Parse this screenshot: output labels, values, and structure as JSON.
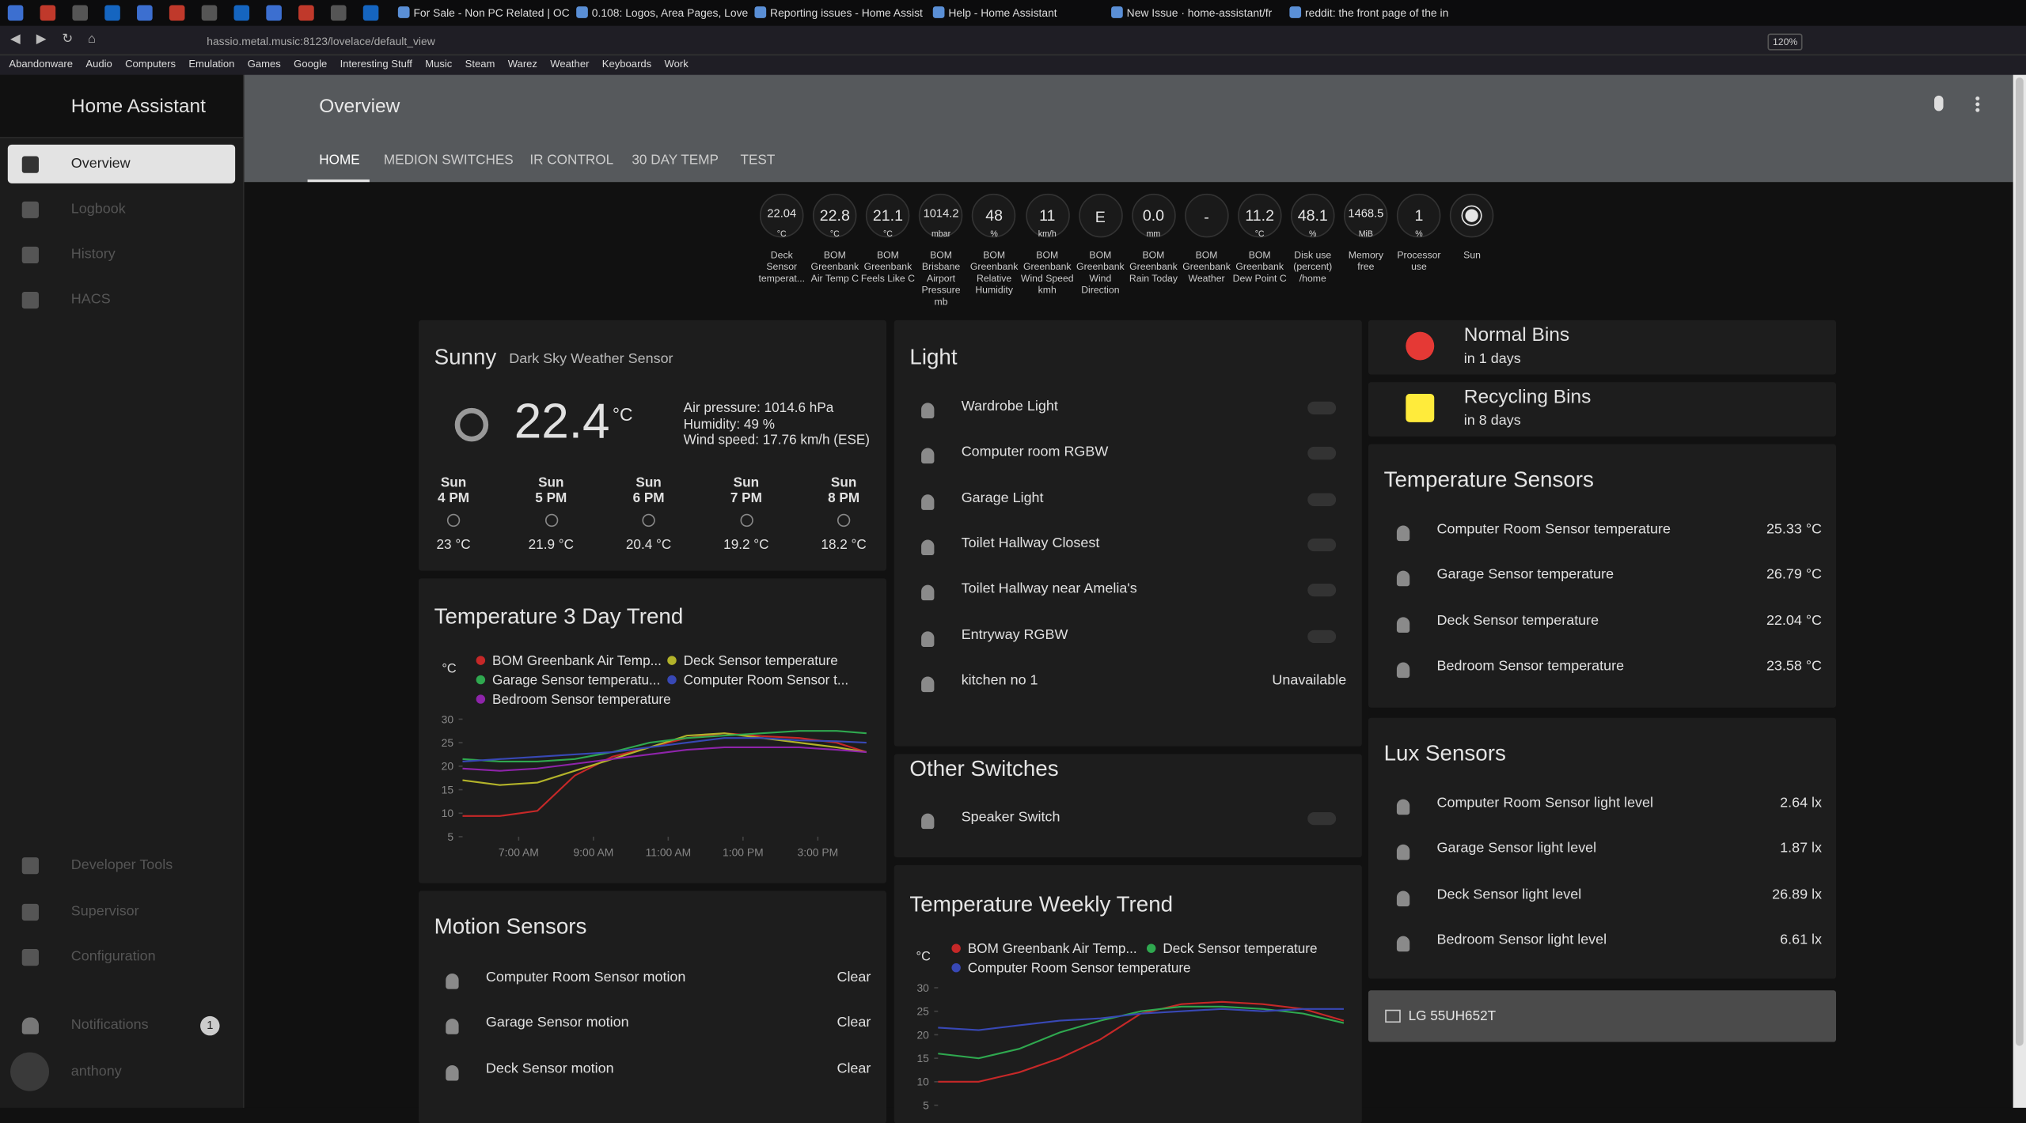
{
  "browser": {
    "tabs": [
      "For Sale - Non PC Related | OC",
      "0.108: Logos, Area Pages, Love",
      "Reporting issues - Home Assist",
      "Help - Home Assistant",
      "New Issue · home-assistant/fr",
      "reddit: the front page of the in"
    ],
    "url": "hassio.metal.music:8123/lovelace/default_view",
    "zoom": "120%",
    "bookmarks": [
      "Abandonware",
      "Audio",
      "Computers",
      "Emulation",
      "Games",
      "Google",
      "Interesting Stuff",
      "Music",
      "Steam",
      "Warez",
      "Weather",
      "Keyboards",
      "Work"
    ]
  },
  "sidebar": {
    "title": "Home Assistant",
    "items": [
      "Overview",
      "Logbook",
      "History",
      "HACS"
    ],
    "bottom_items": [
      "Developer Tools",
      "Supervisor",
      "Configuration"
    ],
    "notifications": "Notifications",
    "notification_count": "1",
    "user": "anthony"
  },
  "header": {
    "title": "Overview",
    "tabs": [
      "HOME",
      "MEDION SWITCHES",
      "IR CONTROL",
      "30 DAY TEMP",
      "TEST"
    ]
  },
  "badges": [
    {
      "value": "22.04",
      "unit": "°C",
      "label": "Deck Sensor temperat..."
    },
    {
      "value": "22.8",
      "unit": "°C",
      "label": "BOM Greenbank Air Temp C"
    },
    {
      "value": "21.1",
      "unit": "°C",
      "label": "BOM Greenbank Feels Like C"
    },
    {
      "value": "1014.2",
      "unit": "mbar",
      "label": "BOM Brisbane Airport Pressure mb"
    },
    {
      "value": "48",
      "unit": "%",
      "label": "BOM Greenbank Relative Humidity"
    },
    {
      "value": "11",
      "unit": "km/h",
      "label": "BOM Greenbank Wind Speed kmh"
    },
    {
      "value": "E",
      "label": "BOM Greenbank Wind Direction"
    },
    {
      "value": "0.0",
      "unit": "mm",
      "label": "BOM Greenbank Rain Today"
    },
    {
      "value": "-",
      "label": "BOM Greenbank Weather"
    },
    {
      "value": "11.2",
      "unit": "°C",
      "label": "BOM Greenbank Dew Point C"
    },
    {
      "value": "48.1",
      "unit": "%",
      "label": "Disk use (percent) /home"
    },
    {
      "value": "1468.5",
      "unit": "MiB",
      "label": "Memory free"
    },
    {
      "value": "1",
      "unit": "%",
      "label": "Processor use"
    },
    {
      "label": "Sun"
    }
  ],
  "weather": {
    "condition": "Sunny",
    "name": "Dark Sky Weather Sensor",
    "temperature": "22.4",
    "unit": "°C",
    "attributes": [
      "Air pressure: 1014.6 hPa",
      "Humidity: 49 %",
      "Wind speed: 17.76 km/h (ESE)"
    ],
    "forecast": [
      {
        "day": "Sun",
        "time": "4 PM",
        "temp": "23 °C"
      },
      {
        "day": "Sun",
        "time": "5 PM",
        "temp": "21.9 °C"
      },
      {
        "day": "Sun",
        "time": "6 PM",
        "temp": "20.4 °C"
      },
      {
        "day": "Sun",
        "time": "7 PM",
        "temp": "19.2 °C"
      },
      {
        "day": "Sun",
        "time": "8 PM",
        "temp": "18.2 °C"
      }
    ]
  },
  "light": {
    "title": "Light",
    "entities": [
      {
        "name": "Wardrobe Light"
      },
      {
        "name": "Computer room RGBW"
      },
      {
        "name": "Garage Light"
      },
      {
        "name": "Toilet Hallway Closest"
      },
      {
        "name": "Toilet Hallway near Amelia's"
      },
      {
        "name": "Entryway RGBW"
      },
      {
        "name": "kitchen no 1",
        "state": "Unavailable"
      }
    ]
  },
  "other_switches": {
    "title": "Other Switches",
    "entities": [
      {
        "name": "Speaker Switch"
      }
    ]
  },
  "motion": {
    "title": "Motion Sensors",
    "entities": [
      {
        "name": "Computer Room Sensor motion",
        "state": "Clear"
      },
      {
        "name": "Garage Sensor motion",
        "state": "Clear"
      },
      {
        "name": "Deck Sensor motion",
        "state": "Clear"
      }
    ]
  },
  "bins": [
    {
      "name": "Normal Bins",
      "due": "in 1 days"
    },
    {
      "name": "Recycling Bins",
      "due": "in 8 days"
    }
  ],
  "temperature_sensors": {
    "title": "Temperature Sensors",
    "entities": [
      {
        "name": "Computer Room Sensor temperature",
        "state": "25.33 °C"
      },
      {
        "name": "Garage Sensor temperature",
        "state": "26.79 °C"
      },
      {
        "name": "Deck Sensor temperature",
        "state": "22.04 °C"
      },
      {
        "name": "Bedroom Sensor temperature",
        "state": "23.58 °C"
      }
    ]
  },
  "lux_sensors": {
    "title": "Lux Sensors",
    "entities": [
      {
        "name": "Computer Room Sensor light level",
        "state": "2.64 lx"
      },
      {
        "name": "Garage Sensor light level",
        "state": "1.87 lx"
      },
      {
        "name": "Deck Sensor light level",
        "state": "26.89 lx"
      },
      {
        "name": "Bedroom Sensor light level",
        "state": "6.61 lx"
      }
    ]
  },
  "media": {
    "name": "LG 55UH652T"
  },
  "chart_data": [
    {
      "type": "line",
      "title": "Temperature 3 Day Trend",
      "y_label": "°C",
      "x": [
        5.5,
        6.5,
        7.5,
        8.5,
        9.5,
        10.5,
        11.5,
        12.5,
        13.5,
        14.5,
        15.5,
        16.3
      ],
      "xlim": [
        5.5,
        16.35
      ],
      "xticks": [
        {
          "value": 7,
          "label": "7:00 AM"
        },
        {
          "value": 9,
          "label": "9:00 AM"
        },
        {
          "value": 11,
          "label": "11:00 AM"
        },
        {
          "value": 13,
          "label": "1:00 PM"
        },
        {
          "value": 15,
          "label": "3:00 PM"
        }
      ],
      "ylim": [
        5,
        30
      ],
      "yticks": [
        5,
        10,
        15,
        20,
        25,
        30
      ],
      "series": [
        {
          "name": "BOM Greenbank Air Temp...",
          "color": "#c62828",
          "values": [
            9.4,
            9.4,
            10.5,
            18,
            22,
            24,
            26,
            27,
            26.4,
            26,
            25,
            23
          ]
        },
        {
          "name": "Deck Sensor temperature",
          "color": "#b3b32a",
          "values": [
            17,
            16,
            16.5,
            19,
            21.5,
            24,
            26.5,
            27,
            26,
            25,
            24,
            23
          ]
        },
        {
          "name": "Garage Sensor temperatu...",
          "color": "#2fa84f",
          "values": [
            21.5,
            21,
            21,
            21.5,
            23,
            25,
            26,
            26.5,
            27,
            27.5,
            27.5,
            27
          ]
        },
        {
          "name": "Computer Room Sensor t...",
          "color": "#3848b5",
          "values": [
            21,
            21.5,
            22,
            22.5,
            23,
            24,
            25,
            26,
            26,
            25.5,
            25.3,
            25
          ]
        },
        {
          "name": "Bedroom Sensor temperature",
          "color": "#8e24aa",
          "values": [
            19.5,
            19,
            19.5,
            20.5,
            21.5,
            22.5,
            23.5,
            24,
            24,
            24,
            23.5,
            23
          ]
        }
      ]
    },
    {
      "type": "line",
      "title": "Temperature Weekly Trend",
      "y_label": "°C",
      "ylim": [
        5,
        30
      ],
      "yticks": [
        5,
        10,
        15,
        20,
        25,
        30
      ],
      "series": [
        {
          "name": "BOM Greenbank Air Temp...",
          "color": "#c62828",
          "values": [
            10,
            10,
            12,
            15,
            19,
            24.5,
            26.5,
            27,
            26.5,
            25.5,
            23
          ]
        },
        {
          "name": "Deck Sensor temperature",
          "color": "#2fa84f",
          "values": [
            16,
            15,
            17,
            20.5,
            23,
            25,
            26,
            26,
            25.5,
            24.5,
            22.5
          ]
        },
        {
          "name": "Computer Room Sensor temperature",
          "color": "#3848b5",
          "values": [
            21.5,
            21,
            22,
            23,
            23.5,
            24.5,
            25,
            25.5,
            25,
            25.5,
            25.5
          ]
        }
      ]
    }
  ]
}
